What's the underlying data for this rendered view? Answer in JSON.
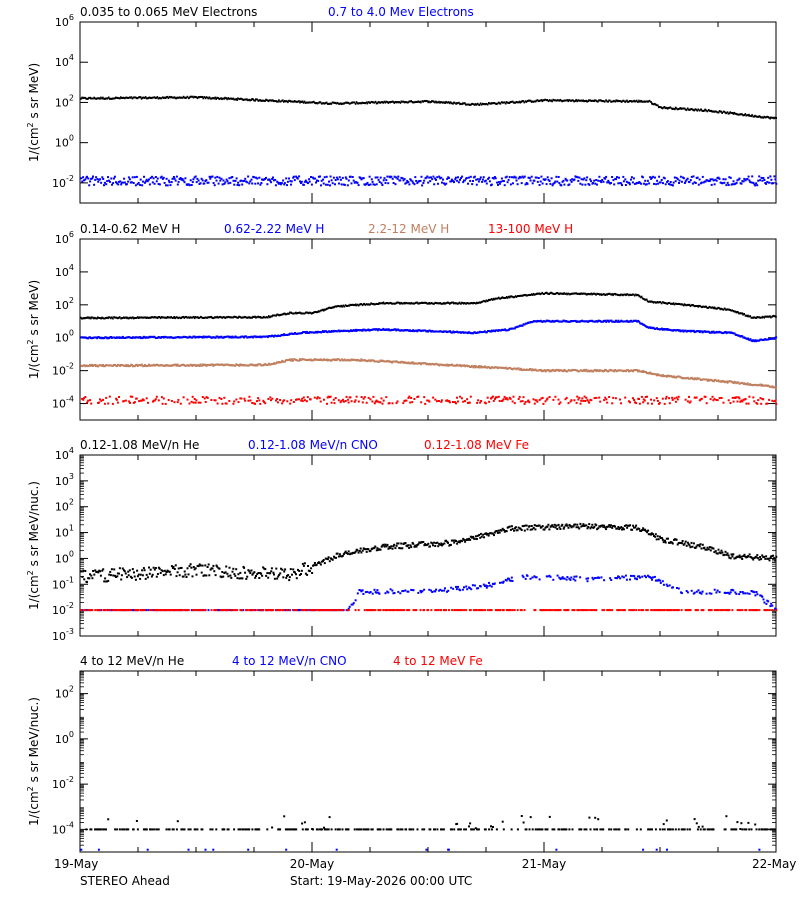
{
  "footer": {
    "spacecraft": "STEREO Ahead",
    "start": "Start: 19-May-2026 00:00 UTC"
  },
  "x_axis": {
    "range": [
      "19-May",
      "22-May"
    ],
    "tick_labels": [
      "19-May",
      "20-May",
      "21-May",
      "22-May"
    ],
    "minor_ticks_per_day": 4
  },
  "chart_data": [
    {
      "type": "scatter",
      "panel": "electrons",
      "ylabel_html": "1/(cm<tspan baseline-shift=\"super\" font-size=\"8\">2</tspan> s sr MeV)",
      "ylabel_plain": "1/(cm2 s sr MeV)",
      "yscale": "log",
      "ylim": [
        -3,
        6
      ],
      "ytick_exponents": [
        -2,
        0,
        2,
        4,
        6
      ],
      "series": [
        {
          "name": "0.035 to 0.065 MeV Electrons",
          "color": "#000000",
          "profile": [
            [
              0,
              2.2
            ],
            [
              0.5,
              2.25
            ],
            [
              1.0,
              2.0
            ],
            [
              1.1,
              1.95
            ],
            [
              1.5,
              2.05
            ],
            [
              1.7,
              1.9
            ],
            [
              2.0,
              2.1
            ],
            [
              2.45,
              2.05
            ],
            [
              2.5,
              1.75
            ],
            [
              2.7,
              1.6
            ],
            [
              3.0,
              1.2
            ]
          ]
        },
        {
          "name": "0.7 to 4.0 Mev Electrons",
          "color": "#0000ff",
          "profile": [
            [
              0,
              -1.9
            ],
            [
              3.0,
              -1.9
            ]
          ]
        }
      ]
    },
    {
      "type": "scatter",
      "panel": "protons",
      "ylabel_plain": "1/(cm2 s sr MeV)",
      "yscale": "log",
      "ylim": [
        -5,
        6
      ],
      "ytick_exponents": [
        -4,
        -2,
        0,
        2,
        4,
        6
      ],
      "series": [
        {
          "name": "0.14-0.62 MeV H",
          "color": "#000000",
          "profile": [
            [
              0,
              1.2
            ],
            [
              0.8,
              1.25
            ],
            [
              0.9,
              1.5
            ],
            [
              1.0,
              1.5
            ],
            [
              1.1,
              1.9
            ],
            [
              1.3,
              2.1
            ],
            [
              1.7,
              2.1
            ],
            [
              1.8,
              2.4
            ],
            [
              2.0,
              2.7
            ],
            [
              2.4,
              2.6
            ],
            [
              2.45,
              2.2
            ],
            [
              2.6,
              2.0
            ],
            [
              2.8,
              1.7
            ],
            [
              2.9,
              1.2
            ],
            [
              3.0,
              1.3
            ]
          ]
        },
        {
          "name": "0.62-2.22 MeV H",
          "color": "#0000ff",
          "profile": [
            [
              0,
              0
            ],
            [
              0.8,
              0.05
            ],
            [
              0.95,
              0.3
            ],
            [
              1.1,
              0.4
            ],
            [
              1.3,
              0.5
            ],
            [
              1.7,
              0.3
            ],
            [
              1.85,
              0.5
            ],
            [
              1.95,
              1.0
            ],
            [
              2.4,
              1.0
            ],
            [
              2.45,
              0.6
            ],
            [
              2.6,
              0.4
            ],
            [
              2.8,
              0.3
            ],
            [
              2.9,
              -0.2
            ],
            [
              3.0,
              0
            ]
          ]
        },
        {
          "name": "2.2-12 MeV H",
          "color": "#c08060",
          "profile": [
            [
              0,
              -1.7
            ],
            [
              0.8,
              -1.65
            ],
            [
              0.9,
              -1.35
            ],
            [
              1.2,
              -1.35
            ],
            [
              1.5,
              -1.6
            ],
            [
              2.0,
              -2.0
            ],
            [
              2.4,
              -2.0
            ],
            [
              2.5,
              -2.3
            ],
            [
              2.8,
              -2.7
            ],
            [
              3.0,
              -3.0
            ]
          ]
        },
        {
          "name": "13-100 MeV H",
          "color": "#ff0000",
          "profile": [
            [
              0,
              -3.8
            ],
            [
              3.0,
              -3.8
            ]
          ]
        }
      ]
    },
    {
      "type": "scatter",
      "panel": "heavy-ions-low",
      "ylabel_plain": "1/(cm2 s sr MeV/nuc.)",
      "yscale": "log",
      "ylim": [
        -3,
        4
      ],
      "ytick_exponents": [
        -3,
        -2,
        -1,
        0,
        1,
        2,
        3,
        4
      ],
      "series": [
        {
          "name": "0.12-1.08 MeV/n He",
          "color": "#000000",
          "profile": [
            [
              0,
              -0.7
            ],
            [
              0.5,
              -0.45
            ],
            [
              0.9,
              -0.65
            ],
            [
              1.0,
              -0.3
            ],
            [
              1.1,
              0.1
            ],
            [
              1.3,
              0.45
            ],
            [
              1.6,
              0.6
            ],
            [
              1.85,
              1.15
            ],
            [
              2.1,
              1.25
            ],
            [
              2.4,
              1.2
            ],
            [
              2.5,
              0.75
            ],
            [
              2.7,
              0.4
            ],
            [
              2.8,
              0.1
            ],
            [
              3.0,
              0.0
            ]
          ]
        },
        {
          "name": "0.12-1.08 MeV/n CNO",
          "color": "#0000ff",
          "profile": [
            [
              0,
              -2
            ],
            [
              1.15,
              -2
            ],
            [
              1.2,
              -1.3
            ],
            [
              1.55,
              -1.25
            ],
            [
              1.75,
              -1.05
            ],
            [
              1.9,
              -0.7
            ],
            [
              2.2,
              -0.8
            ],
            [
              2.45,
              -0.7
            ],
            [
              2.6,
              -1.3
            ],
            [
              2.9,
              -1.3
            ],
            [
              3.0,
              -2
            ]
          ]
        },
        {
          "name": "0.12-1.08 MeV Fe",
          "color": "#ff0000",
          "profile": [
            [
              0,
              -2
            ],
            [
              3.0,
              -2
            ]
          ]
        }
      ]
    },
    {
      "type": "scatter",
      "panel": "heavy-ions-high",
      "ylabel_plain": "1/(cm2 s sr MeV/nuc.)",
      "yscale": "log",
      "ylim": [
        -5,
        3
      ],
      "ytick_exponents": [
        -4,
        -2,
        0,
        2
      ],
      "series": [
        {
          "name": "4 to 12 MeV/n He",
          "color": "#000000",
          "profile": [
            [
              0,
              -4
            ],
            [
              3.0,
              -4
            ]
          ]
        },
        {
          "name": "4 to 12 MeV/n CNO",
          "color": "#0000ff",
          "profile": [
            [
              0,
              -4.9
            ],
            [
              3.0,
              -4.9
            ]
          ]
        },
        {
          "name": "4 to 12 MeV Fe",
          "color": "#ff0000",
          "profile": []
        }
      ]
    }
  ]
}
